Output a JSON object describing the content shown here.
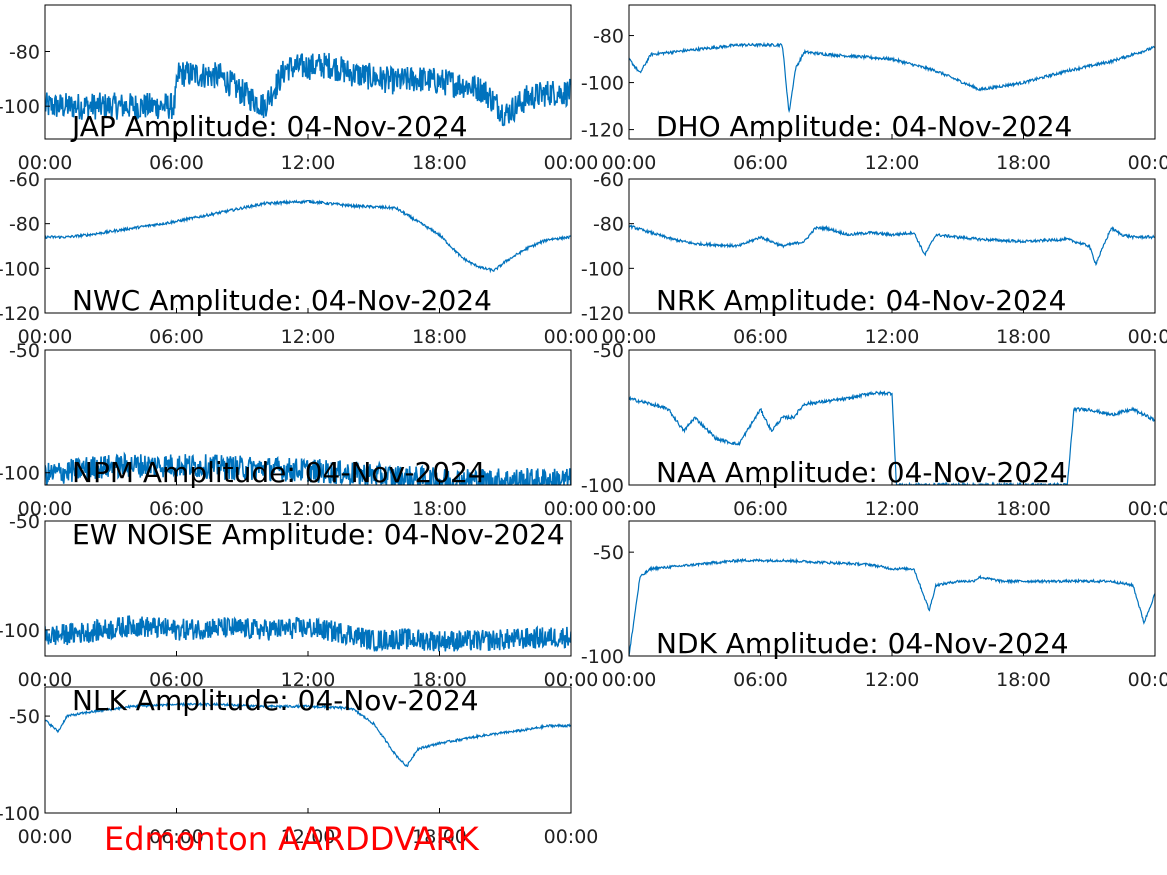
{
  "footer": {
    "station": "Edmonton AARDDVARK",
    "color": "#ff0000"
  },
  "line_color": "#0072bd",
  "x_ticks": [
    "00:00",
    "06:00",
    "12:00",
    "18:00",
    "00:00"
  ],
  "chart_data": [
    {
      "type": "line",
      "title": "JAP Amplitude: 04-Nov-2024",
      "ylim": [
        -112,
        -63
      ],
      "yticks": [
        -80,
        -100
      ],
      "ytick_labels": [
        "-80",
        "-100"
      ],
      "x_hours": [
        0,
        3,
        5.9,
        6.1,
        8,
        9,
        10,
        11,
        13,
        14,
        16,
        17,
        19,
        20,
        21,
        22,
        23,
        24
      ],
      "series": [
        {
          "values": [
            -100,
            -100,
            -100,
            -88,
            -89,
            -95,
            -100,
            -86,
            -85,
            -88,
            -91,
            -90,
            -92,
            -94,
            -103,
            -97,
            -95,
            -95
          ]
        }
      ]
    },
    {
      "type": "line",
      "title": "DHO Amplitude: 04-Nov-2024",
      "ylim": [
        -124,
        -67
      ],
      "yticks": [
        -80,
        -100,
        -120
      ],
      "ytick_labels": [
        "-80",
        "-100",
        "-120"
      ],
      "x_hours": [
        0,
        0.5,
        1,
        2,
        3,
        5,
        6,
        7,
        7.3,
        7.6,
        8,
        9,
        12,
        14,
        16,
        18,
        20,
        22,
        24
      ],
      "series": [
        {
          "values": [
            -90,
            -96,
            -88,
            -87,
            -86,
            -84,
            -84,
            -84,
            -113,
            -94,
            -87,
            -88,
            -90,
            -95,
            -103,
            -100,
            -95,
            -91,
            -85
          ]
        }
      ]
    },
    {
      "type": "line",
      "title": "NWC Amplitude: 04-Nov-2024",
      "ylim": [
        -120,
        -60
      ],
      "yticks": [
        -60,
        -80,
        -100,
        -120
      ],
      "ytick_labels": [
        "-60",
        "-80",
        "-100",
        "-120"
      ],
      "x_hours": [
        0,
        1,
        2,
        4,
        6,
        8,
        10,
        12,
        14,
        16,
        17,
        18,
        19,
        19.5,
        20,
        20.5,
        21,
        22,
        22.7,
        23,
        24
      ],
      "series": [
        {
          "values": [
            -86,
            -86,
            -85,
            -82,
            -79,
            -75,
            -71,
            -70,
            -72,
            -73,
            -79,
            -85,
            -95,
            -98,
            -100,
            -101,
            -97,
            -91,
            -88,
            -87,
            -86
          ]
        }
      ]
    },
    {
      "type": "line",
      "title": "NRK Amplitude: 04-Nov-2024",
      "ylim": [
        -120,
        -60
      ],
      "yticks": [
        -60,
        -80,
        -100,
        -120
      ],
      "ytick_labels": [
        "-60",
        "-80",
        "-100",
        "-120"
      ],
      "x_hours": [
        0,
        1,
        2,
        3,
        5,
        6,
        7,
        8,
        8.5,
        9,
        10,
        11,
        12,
        13,
        13.5,
        14,
        16,
        18,
        20,
        21,
        21.3,
        22,
        22.5,
        23,
        24
      ],
      "series": [
        {
          "values": [
            -81,
            -84,
            -87,
            -89,
            -90,
            -86,
            -90,
            -88,
            -82,
            -82,
            -85,
            -84,
            -85,
            -84,
            -94,
            -85,
            -87,
            -88,
            -87,
            -90,
            -98,
            -82,
            -85,
            -86,
            -86
          ]
        }
      ]
    },
    {
      "type": "line",
      "title": "NPM Amplitude: 04-Nov-2024",
      "ylim": [
        -105,
        -50
      ],
      "yticks": [
        -50,
        -100
      ],
      "ytick_labels": [
        "-50",
        "-100"
      ],
      "x_hours": [
        0,
        2,
        4,
        6,
        9,
        12,
        15,
        18,
        21,
        24
      ],
      "series": [
        {
          "values": [
            -101,
            -98,
            -97,
            -97,
            -98,
            -99,
            -101,
            -103,
            -103,
            -103
          ]
        }
      ]
    },
    {
      "type": "line",
      "title": "NAA Amplitude: 04-Nov-2024",
      "ylim": [
        -100,
        -50
      ],
      "yticks": [
        -50,
        -100
      ],
      "ytick_labels": [
        "-50",
        "-100"
      ],
      "x_hours": [
        0,
        1,
        1.8,
        2.5,
        3,
        4,
        5,
        6,
        6.5,
        7,
        7.5,
        8,
        9,
        10,
        11,
        11.5,
        12,
        12.2,
        14,
        20,
        20.3,
        21,
        22,
        23,
        24
      ],
      "series": [
        {
          "values": [
            -68,
            -70,
            -72,
            -80,
            -75,
            -83,
            -85,
            -72,
            -80,
            -75,
            -75,
            -70,
            -69,
            -68,
            -66,
            -66,
            -66,
            -100,
            -100,
            -100,
            -72,
            -72,
            -74,
            -72,
            -76
          ]
        }
      ]
    },
    {
      "type": "line",
      "title": "EW NOISE Amplitude: 04-Nov-2024",
      "ylim": [
        -112,
        -50
      ],
      "yticks": [
        -50,
        -100
      ],
      "ytick_labels": [
        "-50",
        "-100"
      ],
      "x_hours": [
        0,
        2,
        4,
        6,
        8,
        10,
        12,
        14,
        15,
        16,
        18,
        20,
        22,
        24
      ],
      "series": [
        {
          "values": [
            -103,
            -101,
            -98,
            -100,
            -99,
            -100,
            -99,
            -102,
            -105,
            -104,
            -105,
            -105,
            -104,
            -103
          ]
        }
      ]
    },
    {
      "type": "line",
      "title": "NDK Amplitude: 04-Nov-2024",
      "ylim": [
        -100,
        -35
      ],
      "yticks": [
        -50,
        -100
      ],
      "ytick_labels": [
        "-50",
        "-100"
      ],
      "x_hours": [
        0,
        0.5,
        1,
        3,
        5,
        7,
        9,
        11,
        12,
        13,
        13.7,
        14,
        15,
        15.7,
        16,
        17,
        19,
        21,
        22,
        23,
        23.5,
        24
      ],
      "series": [
        {
          "values": [
            -100,
            -62,
            -58,
            -56,
            -54,
            -54,
            -55,
            -56,
            -58,
            -58,
            -78,
            -66,
            -64,
            -64,
            -62,
            -64,
            -64,
            -64,
            -64,
            -66,
            -84,
            -70
          ]
        }
      ]
    },
    {
      "type": "line",
      "title": "NLK Amplitude: 04-Nov-2024",
      "ylim": [
        -100,
        -35
      ],
      "yticks": [
        -50,
        -100
      ],
      "ytick_labels": [
        "-50",
        "-100"
      ],
      "x_hours": [
        0,
        0.6,
        1,
        2,
        4,
        6,
        8,
        10,
        12,
        14,
        15,
        16,
        16.5,
        17,
        18,
        20,
        22,
        23,
        24
      ],
      "series": [
        {
          "values": [
            -52,
            -58,
            -50,
            -48,
            -45,
            -44,
            -44,
            -45,
            -45,
            -46,
            -54,
            -70,
            -76,
            -67,
            -64,
            -60,
            -57,
            -55,
            -55
          ]
        }
      ]
    }
  ]
}
